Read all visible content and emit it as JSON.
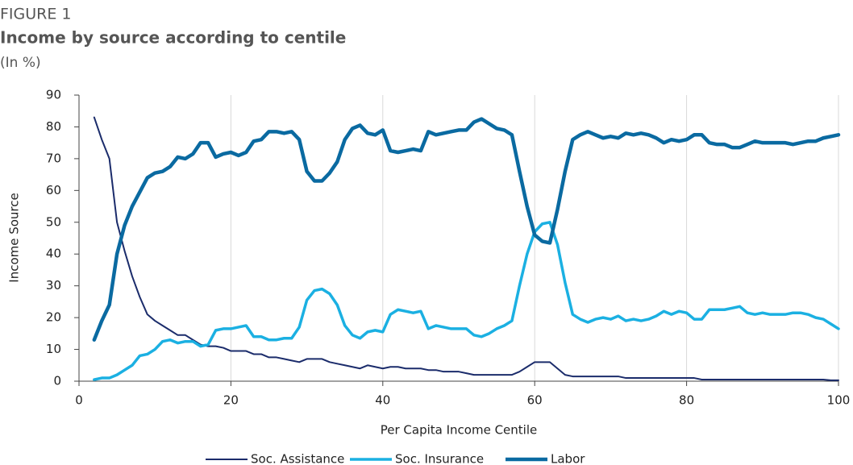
{
  "chart_data": {
    "type": "line",
    "figure_label": "FIGURE 1",
    "title": "Income by source according to centile",
    "subtitle": "(In %)",
    "x_label": "Per Capita Income Centile",
    "y_label": "Income Source",
    "xlim": [
      0,
      100
    ],
    "xticks": [
      0,
      20,
      40,
      60,
      80,
      100
    ],
    "ylim": [
      0,
      90
    ],
    "yticks": [
      0,
      10,
      20,
      30,
      40,
      50,
      60,
      70,
      80,
      90
    ],
    "grid": "x",
    "legend": "bottom",
    "x": [
      2,
      3,
      4,
      5,
      6,
      7,
      8,
      9,
      10,
      11,
      12,
      13,
      14,
      15,
      16,
      17,
      18,
      19,
      20,
      21,
      22,
      23,
      24,
      25,
      26,
      27,
      28,
      29,
      30,
      31,
      32,
      33,
      34,
      35,
      36,
      37,
      38,
      39,
      40,
      41,
      42,
      43,
      44,
      45,
      46,
      47,
      48,
      49,
      50,
      51,
      52,
      53,
      54,
      55,
      56,
      57,
      58,
      59,
      60,
      61,
      62,
      63,
      64,
      65,
      66,
      67,
      68,
      69,
      70,
      71,
      72,
      73,
      74,
      75,
      76,
      77,
      78,
      79,
      80,
      81,
      82,
      83,
      84,
      85,
      86,
      87,
      88,
      89,
      90,
      91,
      92,
      93,
      94,
      95,
      96,
      97,
      98,
      99,
      100
    ],
    "series": [
      {
        "name": "Soc. Assistance",
        "color": "#1b2c6b",
        "width": 2,
        "values": [
          83,
          76,
          70,
          50,
          41,
          33,
          26.5,
          21,
          19,
          17.5,
          16,
          14.5,
          14.5,
          13,
          11.5,
          11,
          11,
          10.5,
          9.5,
          9.5,
          9.5,
          8.5,
          8.5,
          7.5,
          7.5,
          7,
          6.5,
          6,
          7,
          7,
          7,
          6,
          5.5,
          5,
          4.5,
          4,
          5,
          4.5,
          4,
          4.5,
          4.5,
          4,
          4,
          4,
          3.5,
          3.5,
          3,
          3,
          3,
          2.5,
          2,
          2,
          2,
          2,
          2,
          2,
          3,
          4.5,
          6,
          6,
          6,
          4,
          2,
          1.5,
          1.5,
          1.5,
          1.5,
          1.5,
          1.5,
          1.5,
          1,
          1,
          1,
          1,
          1,
          1,
          1,
          1,
          1,
          1,
          0.5,
          0.5,
          0.5,
          0.5,
          0.5,
          0.5,
          0.5,
          0.5,
          0.5,
          0.5,
          0.5,
          0.5,
          0.5,
          0.5,
          0.5,
          0.5,
          0.5,
          0.3,
          0.3
        ]
      },
      {
        "name": "Soc. Insurance",
        "color": "#1bb0e2",
        "width": 3.5,
        "values": [
          0.5,
          1,
          1,
          2,
          3.5,
          5,
          8,
          8.5,
          10,
          12.5,
          13,
          12,
          12.5,
          12.5,
          11,
          11.5,
          16,
          16.5,
          16.5,
          17,
          17.5,
          14,
          14,
          13,
          13,
          13.5,
          13.5,
          17,
          25.5,
          28.5,
          29,
          27.5,
          24,
          17.5,
          14.5,
          13.5,
          15.5,
          16,
          15.5,
          21,
          22.5,
          22,
          21.5,
          22,
          16.5,
          17.5,
          17,
          16.5,
          16.5,
          16.5,
          14.5,
          14,
          15,
          16.5,
          17.5,
          19,
          30,
          40,
          47,
          49.5,
          50,
          43,
          31,
          21,
          19.5,
          18.5,
          19.5,
          20,
          19.5,
          20.5,
          19,
          19.5,
          19,
          19.5,
          20.5,
          22,
          21,
          22,
          21.5,
          19.5,
          19.5,
          22.5,
          22.5,
          22.5,
          23,
          23.5,
          21.5,
          21,
          21.5,
          21,
          21,
          21,
          21.5,
          21.5,
          21,
          20,
          19.5,
          18,
          16.5
        ]
      },
      {
        "name": "Labor",
        "color": "#0a6aa1",
        "width": 4.5,
        "values": [
          13,
          19,
          24,
          40,
          49,
          55,
          59.5,
          64,
          65.5,
          66,
          67.5,
          70.5,
          70,
          71.5,
          75,
          75,
          70.5,
          71.5,
          72,
          71,
          72,
          75.5,
          76,
          78.5,
          78.5,
          78,
          78.5,
          76,
          66,
          63,
          63,
          65.5,
          69,
          76,
          79.5,
          80.5,
          78,
          77.5,
          79,
          72.5,
          72,
          72.5,
          73,
          72.5,
          78.5,
          77.5,
          78,
          78.5,
          79,
          79,
          81.5,
          82.5,
          81,
          79.5,
          79,
          77.5,
          66,
          55,
          46,
          44,
          43.5,
          54,
          66,
          76,
          77.5,
          78.5,
          77.5,
          76.5,
          77,
          76.5,
          78,
          77.5,
          78,
          77.5,
          76.5,
          75,
          76,
          75.5,
          76,
          77.5,
          77.5,
          75,
          74.5,
          74.5,
          73.5,
          73.5,
          74.5,
          75.5,
          75,
          75,
          75,
          75,
          74.5,
          75,
          75.5,
          75.5,
          76.5,
          77,
          77.5
        ]
      }
    ]
  }
}
